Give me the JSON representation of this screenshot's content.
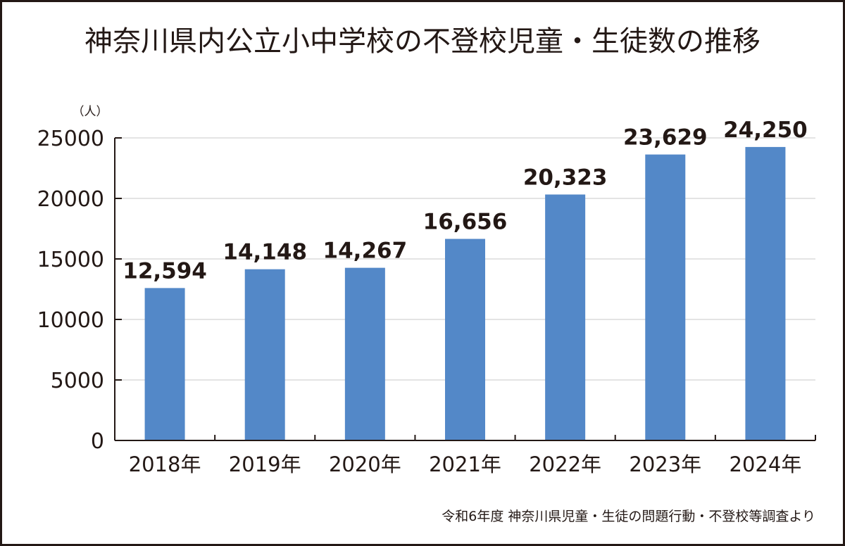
{
  "chart_data": {
    "type": "bar",
    "title": "神奈川県内公立小中学校の不登校児童・生徒数の推移",
    "unit_label": "（人）",
    "categories": [
      "2018年",
      "2019年",
      "2020年",
      "2021年",
      "2022年",
      "2023年",
      "2024年"
    ],
    "values": [
      12594,
      14148,
      14267,
      16656,
      20323,
      23629,
      24250
    ],
    "data_labels": [
      "12,594",
      "14,148",
      "14,267",
      "16,656",
      "20,323",
      "23,629",
      "24,250"
    ],
    "yticks": [
      0,
      5000,
      10000,
      15000,
      20000,
      25000
    ],
    "ylim": [
      0,
      25000
    ],
    "grid": true,
    "bar_color": "#5388c8",
    "source": "令和6年度 神奈川県児童・生徒の問題行動・不登校等調査より"
  }
}
